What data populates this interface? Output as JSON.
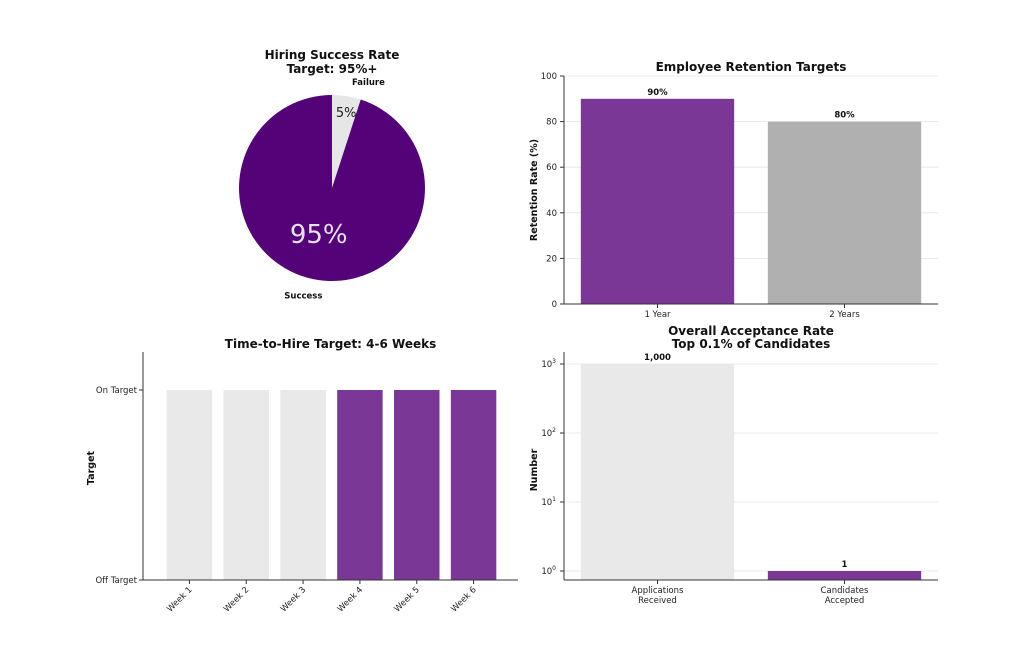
{
  "colors": {
    "purple": "#7a3796",
    "purple_dark": "#530377",
    "gray": "#b0b0b0",
    "light": "#e9e9e9",
    "failure": "#e6e6e6"
  },
  "chart_data": [
    {
      "type": "pie",
      "title": [
        "Hiring Success Rate",
        "Target: 95%+"
      ],
      "slices": [
        {
          "label": "Failure",
          "value": 5,
          "pct_label": "5%",
          "color": "#e6e6e6"
        },
        {
          "label": "Success",
          "value": 95,
          "pct_label": "95%",
          "color": "#530377"
        }
      ]
    },
    {
      "type": "bar",
      "title": "Employee Retention Targets",
      "categories": [
        "1 Year",
        "2 Years"
      ],
      "values": [
        90,
        80
      ],
      "value_labels": [
        "90%",
        "80%"
      ],
      "colors": [
        "#7a3796",
        "#b0b0b0"
      ],
      "xlabel": "",
      "ylabel": "Retention Rate (%)",
      "ylim": [
        0,
        100
      ],
      "yticks": [
        0,
        20,
        40,
        60,
        80,
        100
      ],
      "grid": "y"
    },
    {
      "type": "bar",
      "title": "Time-to-Hire Target: 4-6 Weeks",
      "categories": [
        "Week 1",
        "Week 2",
        "Week 3",
        "Week 4",
        "Week 5",
        "Week 6"
      ],
      "values": [
        1,
        1,
        1,
        1,
        1,
        1
      ],
      "colors": [
        "#e9e9e9",
        "#e9e9e9",
        "#e9e9e9",
        "#7a3796",
        "#7a3796",
        "#7a3796"
      ],
      "xlabel": "",
      "ylabel": "Target",
      "ylim": [
        0,
        1.2
      ],
      "yticks": [
        0,
        1
      ],
      "ytick_labels": [
        "Off Target",
        "On Target"
      ]
    },
    {
      "type": "bar",
      "title": [
        "Overall Acceptance Rate",
        "Top 0.1% of Candidates"
      ],
      "categories": [
        [
          "Applications",
          "Received"
        ],
        [
          "Candidates",
          "Accepted"
        ]
      ],
      "values": [
        1000,
        1
      ],
      "value_labels": [
        "1,000",
        "1"
      ],
      "colors": [
        "#e9e9e9",
        "#7a3796"
      ],
      "xlabel": "",
      "ylabel": "Number",
      "yscale": "log",
      "ylim": [
        0.85,
        1000
      ],
      "yticks": [
        1,
        10,
        100,
        1000
      ],
      "ytick_labels": [
        [
          "10",
          "0"
        ],
        [
          "10",
          "1"
        ],
        [
          "10",
          "2"
        ],
        [
          "10",
          "3"
        ]
      ],
      "grid": "y"
    }
  ]
}
